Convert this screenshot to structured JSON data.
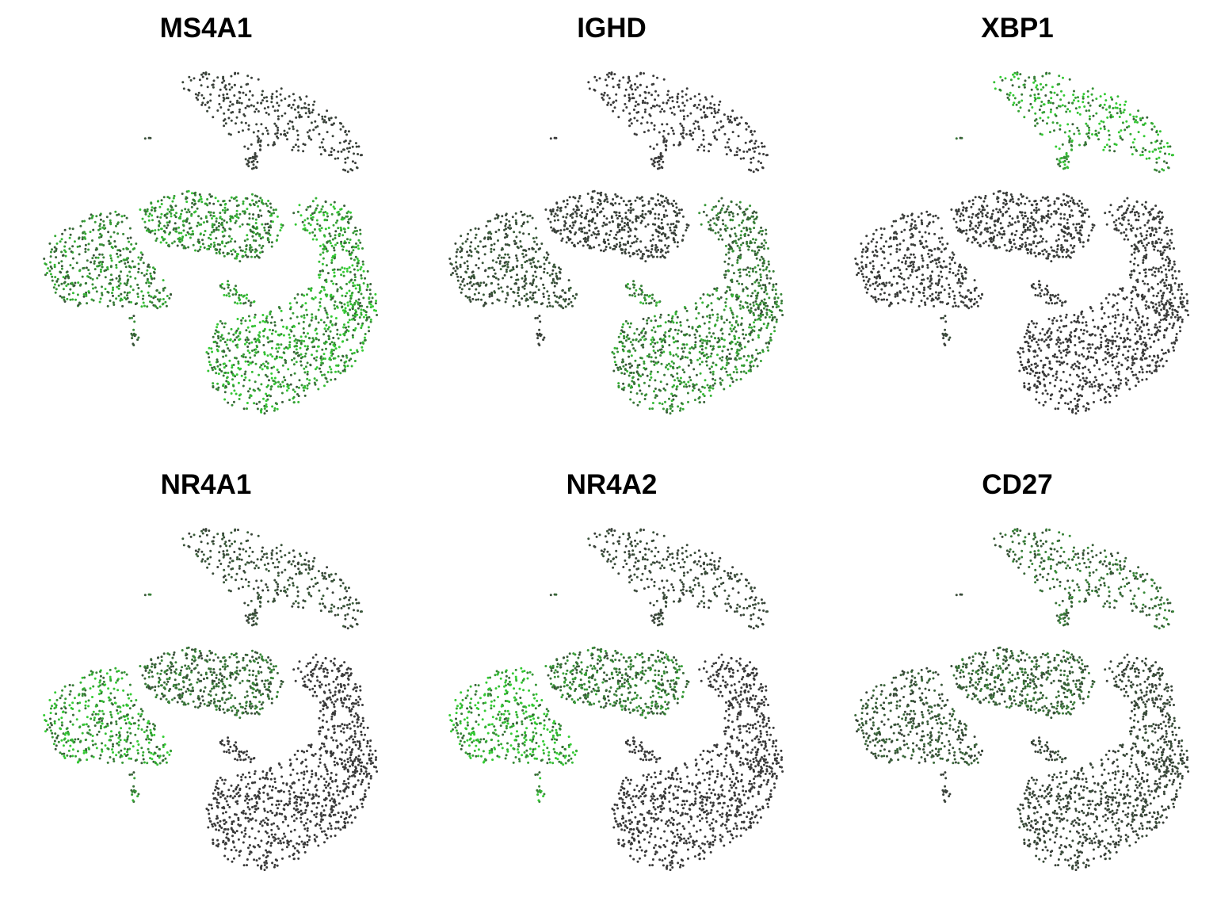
{
  "figure": {
    "point_color_low": "#3a3a3a",
    "point_color_high": "#33cc33",
    "background": "#ffffff"
  },
  "chart_data": [
    {
      "type": "scatter",
      "title": "MS4A1",
      "gene": "MS4A1",
      "xlabel": "",
      "ylabel": "",
      "grid": false,
      "legend": "none",
      "expression_by_cluster": {
        "plasma_top": 0.05,
        "speck": 0.1,
        "left_lobe": 0.55,
        "mid_band": 0.6,
        "small_island": 0.65,
        "right_arc": 0.7,
        "bottom_blob": 0.7,
        "tail": 0.35
      }
    },
    {
      "type": "scatter",
      "title": "IGHD",
      "gene": "IGHD",
      "xlabel": "",
      "ylabel": "",
      "grid": false,
      "legend": "none",
      "expression_by_cluster": {
        "plasma_top": 0.0,
        "speck": 0.0,
        "left_lobe": 0.15,
        "mid_band": 0.05,
        "small_island": 0.6,
        "right_arc": 0.4,
        "bottom_blob": 0.55,
        "tail": 0.05
      }
    },
    {
      "type": "scatter",
      "title": "XBP1",
      "gene": "XBP1",
      "xlabel": "",
      "ylabel": "",
      "grid": false,
      "legend": "none",
      "expression_by_cluster": {
        "plasma_top": 0.8,
        "speck": 0.3,
        "left_lobe": 0.02,
        "mid_band": 0.02,
        "small_island": 0.02,
        "right_arc": 0.02,
        "bottom_blob": 0.0,
        "tail": 0.1
      }
    },
    {
      "type": "scatter",
      "title": "NR4A1",
      "gene": "NR4A1",
      "xlabel": "",
      "ylabel": "",
      "grid": false,
      "legend": "none",
      "expression_by_cluster": {
        "plasma_top": 0.15,
        "speck": 0.3,
        "left_lobe": 0.75,
        "mid_band": 0.35,
        "small_island": 0.0,
        "right_arc": 0.0,
        "bottom_blob": 0.0,
        "tail": 0.5
      }
    },
    {
      "type": "scatter",
      "title": "NR4A2",
      "gene": "NR4A2",
      "xlabel": "",
      "ylabel": "",
      "grid": false,
      "legend": "none",
      "expression_by_cluster": {
        "plasma_top": 0.1,
        "speck": 0.2,
        "left_lobe": 0.9,
        "mid_band": 0.45,
        "small_island": 0.0,
        "right_arc": 0.0,
        "bottom_blob": 0.0,
        "tail": 0.7
      }
    },
    {
      "type": "scatter",
      "title": "CD27",
      "gene": "CD27",
      "xlabel": "",
      "ylabel": "",
      "grid": false,
      "legend": "none",
      "expression_by_cluster": {
        "plasma_top": 0.35,
        "speck": 0.1,
        "left_lobe": 0.2,
        "mid_band": 0.3,
        "small_island": 0.1,
        "right_arc": 0.1,
        "bottom_blob": 0.08,
        "tail": 0.05
      }
    }
  ]
}
